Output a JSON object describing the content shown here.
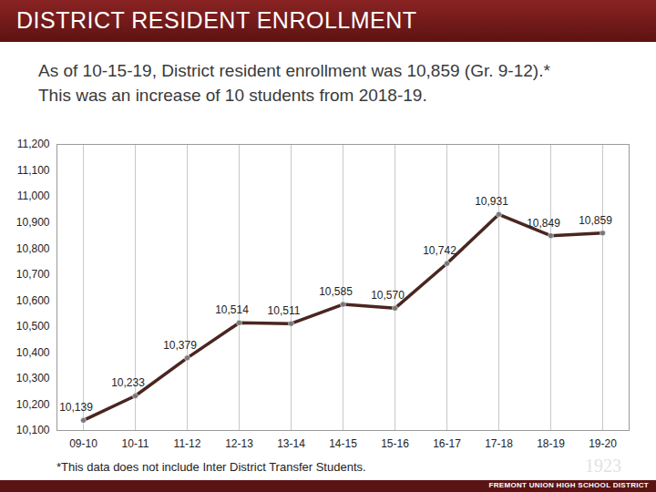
{
  "chart_data": {
    "type": "line",
    "title": "DISTRICT RESIDENT ENROLLMENT",
    "subtitle": [
      "As of 10-15-19, District resident enrollment was 10,859 (Gr. 9-12).*",
      "This was an increase of 10 students from 2018-19."
    ],
    "caption": "*This data does not include Inter District Transfer Students.",
    "annotations": [
      "FREMONT UNION HIGH SCHOOL DISTRICT",
      "1923"
    ],
    "categories": [
      "09-10",
      "10-11",
      "11-12",
      "12-13",
      "13-14",
      "14-15",
      "15-16",
      "16-17",
      "17-18",
      "18-19",
      "19-20"
    ],
    "values": [
      10139,
      10233,
      10379,
      10514,
      10511,
      10585,
      10570,
      10742,
      10931,
      10849,
      10859
    ],
    "value_labels": [
      "10,139",
      "10,233",
      "10,379",
      "10,514",
      "10,511",
      "10,585",
      "10,570",
      "10,742",
      "10,931",
      "10,849",
      "10,859"
    ],
    "color": "#4a2620",
    "marker": "circle",
    "data_labels": true,
    "grid": "x",
    "ylim": [
      10100,
      11200
    ],
    "yticks": [
      {
        "value": 10100,
        "label": "10,100"
      },
      {
        "value": 10200,
        "label": "10,200"
      },
      {
        "value": 10300,
        "label": "10,300"
      },
      {
        "value": 10400,
        "label": "10,400"
      },
      {
        "value": 10500,
        "label": "10,500"
      },
      {
        "value": 10600,
        "label": "10,600"
      },
      {
        "value": 10700,
        "label": "10,700"
      },
      {
        "value": 10800,
        "label": "10,800"
      },
      {
        "value": 10900,
        "label": "10,900"
      },
      {
        "value": 11000,
        "label": "11,000"
      },
      {
        "value": 11100,
        "label": "11,100"
      },
      {
        "value": 11200,
        "label": "11,200"
      }
    ]
  }
}
